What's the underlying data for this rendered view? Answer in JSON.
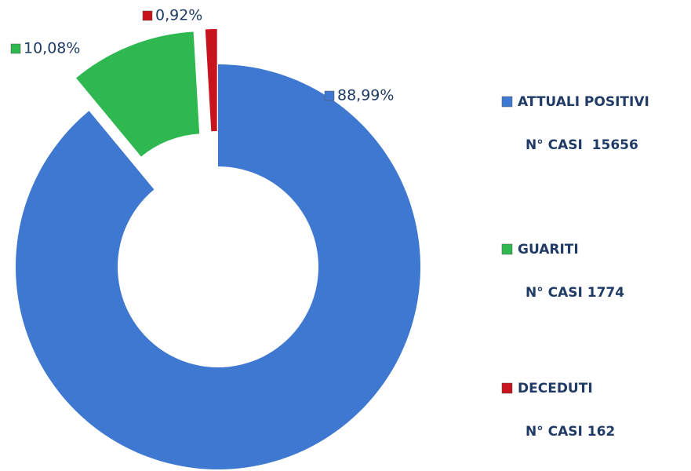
{
  "chart_data": {
    "type": "donut",
    "categories": [
      "ATTUALI POSITIVI",
      "GUARITI",
      "DECEDUTI"
    ],
    "values": [
      88.99,
      10.08,
      0.92
    ],
    "value_labels": [
      "88,99%",
      "10,08%",
      "0,92%"
    ],
    "colors": [
      "#3f78d0",
      "#2fb84f",
      "#c8141c"
    ],
    "legend_details": [
      "N° CASI  15656",
      "N° CASI 1774",
      "N° CASI 162"
    ],
    "legend": "right"
  }
}
